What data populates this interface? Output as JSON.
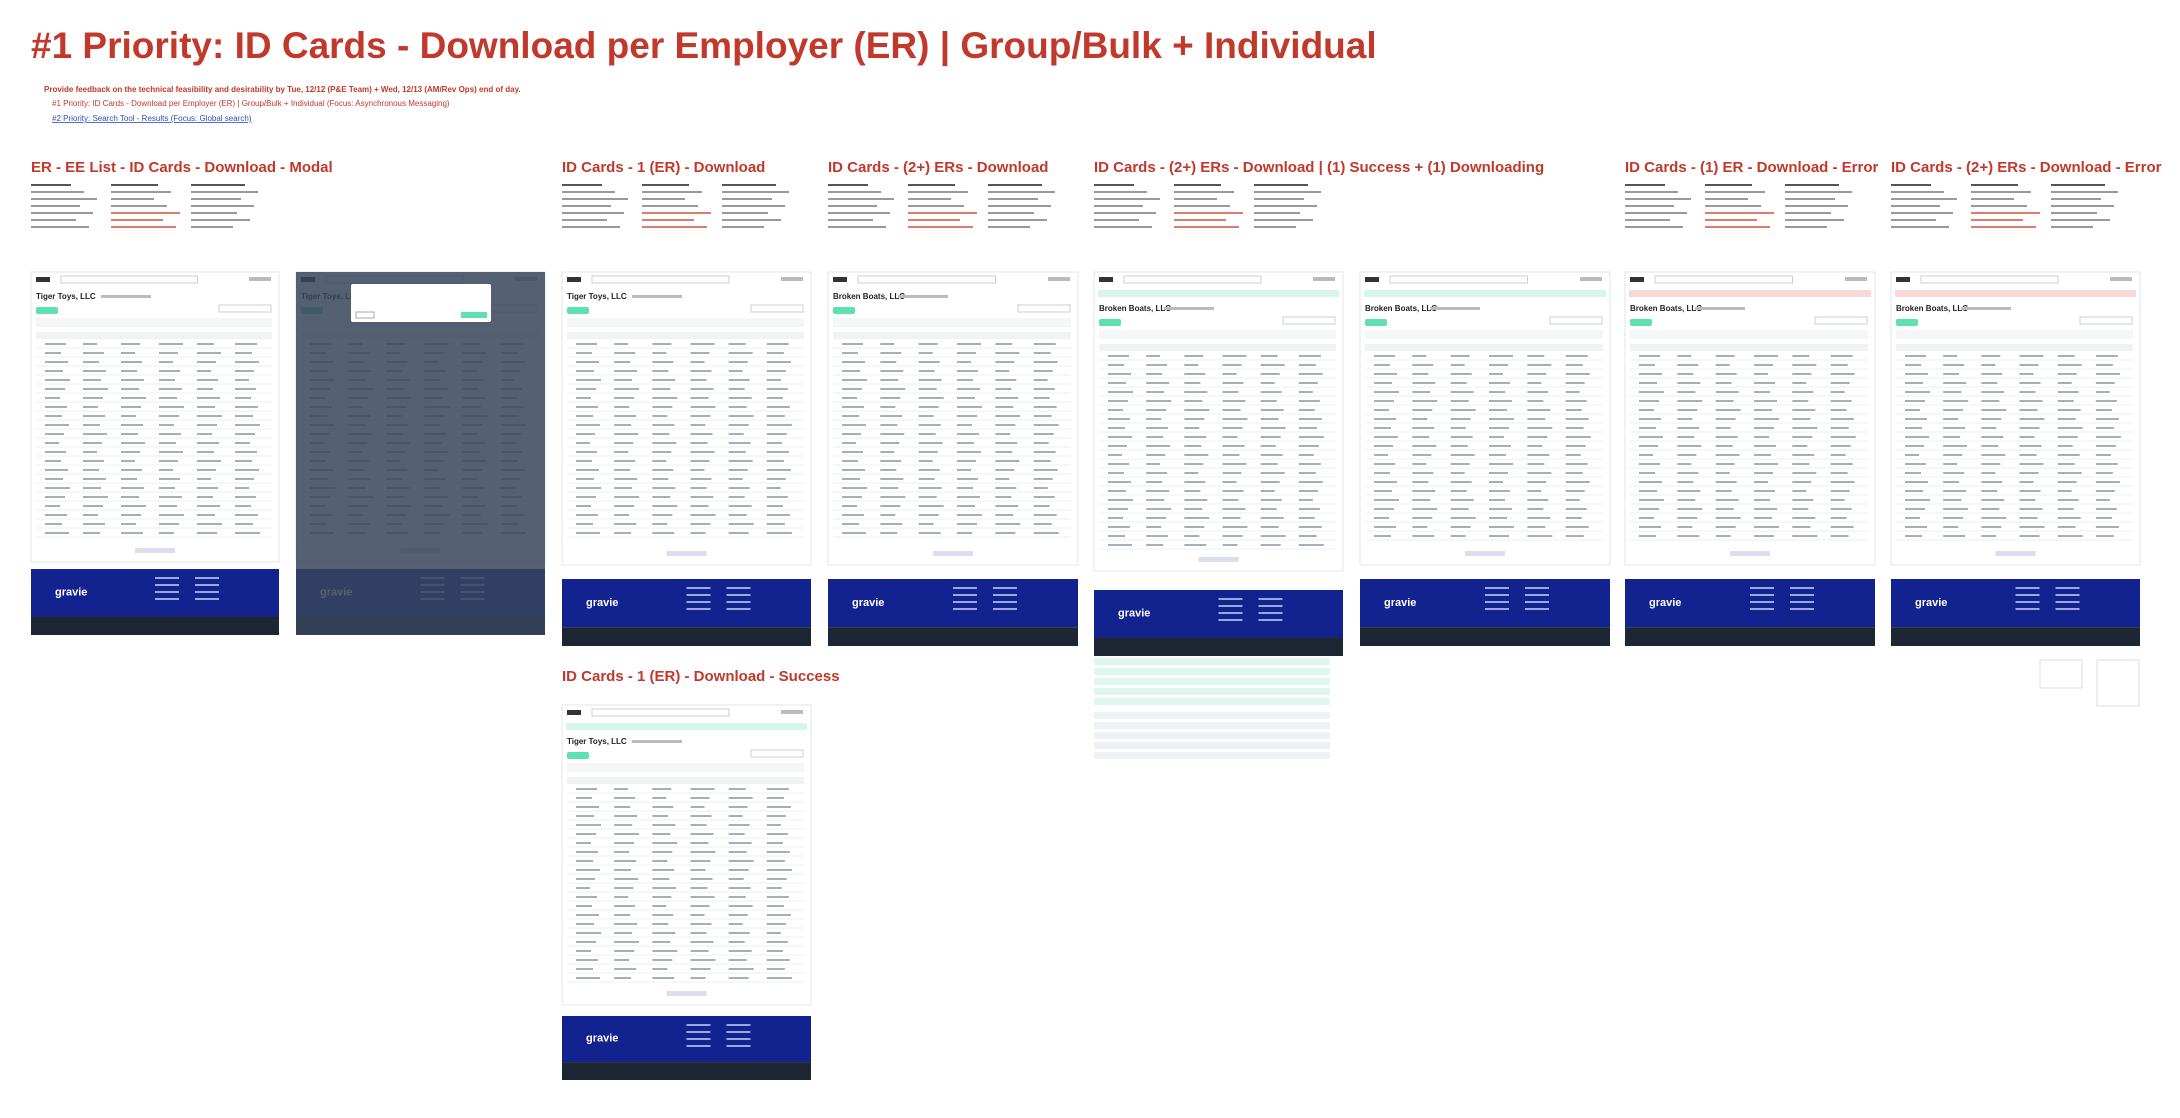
{
  "header": {
    "title": "#1 Priority: ID Cards - Download per Employer (ER) | Group/Bulk + Individual",
    "intro": "Provide feedback on the technical feasibility and desirability by Tue, 12/12 (P&E Team) + Wed, 12/13 (AM/Rev Ops) end of day.",
    "links": [
      "#1 Priority: ID Cards - Download per Employer (ER) | Group/Bulk + Individual (Focus: Asynchronous Messaging)",
      "#2 Priority: Search Tool - Results (Focus: Global search)"
    ]
  },
  "brand": "gravie",
  "sections": [
    {
      "heading": "ER - EE List - ID Cards - Download - Modal",
      "screens": [
        {
          "company": "Tiger Toys, LLC"
        },
        {
          "company": "Tiger Toys, LLC"
        }
      ]
    },
    {
      "heading": "ID Cards - 1 (ER) - Download",
      "screens": [
        {
          "company": "Tiger Toys, LLC"
        }
      ]
    },
    {
      "heading": "ID Cards - (2+) ERs - Download",
      "screens": [
        {
          "company": "Broken Boats, LLC"
        }
      ]
    },
    {
      "heading": "ID Cards - (2+) ERs - Download | (1) Success + (1) Downloading",
      "screens": [
        {
          "company": "Broken Boats, LLC"
        },
        {
          "company": "Broken Boats, LLC"
        }
      ]
    },
    {
      "heading": "ID Cards - (1) ER - Download - Error",
      "screens": [
        {
          "company": "Broken Boats, LLC"
        }
      ]
    },
    {
      "heading": "ID Cards - (2+) ERs - Download - Error",
      "screens": [
        {
          "company": "Broken Boats, LLC"
        }
      ]
    },
    {
      "heading": "ID Cards - 1 (ER) - Download - Success",
      "screens": [
        {
          "company": "Tiger Toys, LLC"
        }
      ]
    }
  ]
}
